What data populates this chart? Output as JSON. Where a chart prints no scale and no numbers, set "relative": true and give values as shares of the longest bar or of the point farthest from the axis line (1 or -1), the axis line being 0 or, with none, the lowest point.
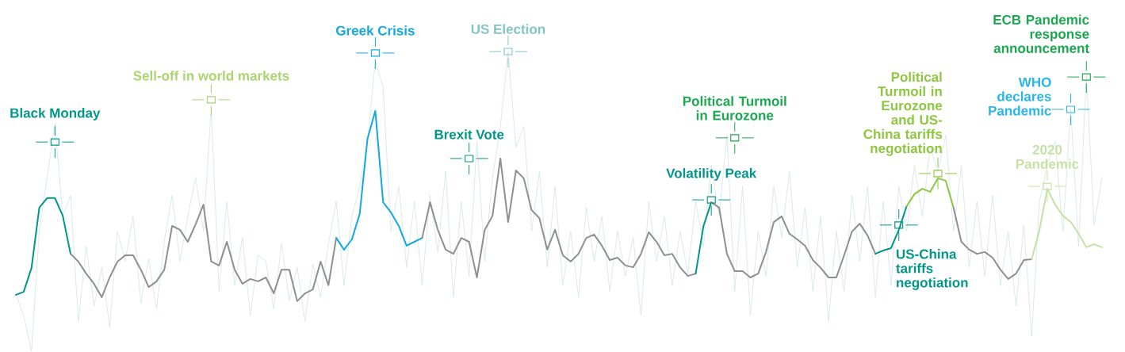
{
  "chart_data": {
    "type": "line",
    "relative": true,
    "categories": [
      null,
      null,
      null,
      null,
      null,
      null,
      null,
      null,
      null,
      null,
      null,
      null,
      null,
      null,
      null,
      null,
      null,
      null,
      null,
      null,
      null,
      null,
      null,
      null,
      null,
      null,
      null,
      null,
      null,
      null,
      null,
      null,
      null,
      null,
      null,
      null,
      null,
      null,
      null,
      null,
      null,
      null,
      null,
      null,
      null,
      null,
      null,
      null,
      null,
      null,
      null,
      null,
      null,
      null,
      null,
      null,
      null,
      null,
      null,
      null,
      null,
      null,
      null,
      null,
      null,
      null,
      null,
      null,
      null,
      null,
      null,
      null,
      null,
      null,
      null,
      null,
      null,
      null,
      null,
      null,
      null,
      null,
      null,
      null,
      null,
      null,
      null,
      null,
      null,
      null,
      null,
      null,
      null,
      null,
      null,
      null,
      null,
      null,
      null,
      null,
      null,
      null,
      null,
      null,
      null,
      null,
      null,
      null,
      null,
      null,
      null,
      null,
      null,
      null,
      null,
      null,
      null,
      null,
      null,
      null,
      null,
      null,
      null,
      null,
      null,
      null,
      null,
      null,
      null,
      null,
      null,
      null,
      null,
      null,
      null,
      null,
      null,
      null,
      null,
      null
    ],
    "series": [
      {
        "color": "#cfe6e2",
        "values": [
          0.19,
          0.12,
          0.0,
          0.4,
          0.58,
          0.76,
          0.45,
          0.52,
          0.1,
          0.35,
          0.15,
          0.28,
          0.08,
          0.4,
          0.3,
          0.45,
          0.16,
          0.31,
          0.14,
          0.37,
          0.52,
          0.3,
          0.45,
          0.58,
          0.4,
          0.81,
          0.2,
          0.5,
          0.22,
          0.38,
          0.12,
          0.32,
          0.3,
          0.14,
          0.36,
          0.17,
          0.28,
          0.1,
          0.29,
          0.18,
          0.36,
          0.5,
          0.22,
          0.45,
          0.55,
          0.7,
          0.97,
          0.88,
          0.4,
          0.55,
          0.28,
          0.5,
          0.22,
          0.52,
          0.33,
          0.6,
          0.18,
          0.5,
          0.25,
          0.7,
          0.3,
          0.58,
          0.75,
          1.0,
          0.68,
          0.75,
          0.4,
          0.6,
          0.28,
          0.55,
          0.22,
          0.4,
          0.18,
          0.48,
          0.3,
          0.45,
          0.2,
          0.4,
          0.25,
          0.38,
          0.12,
          0.5,
          0.3,
          0.45,
          0.22,
          0.4,
          0.26,
          0.5,
          0.35,
          0.62,
          0.45,
          0.72,
          0.2,
          0.55,
          0.12,
          0.4,
          0.25,
          0.55,
          0.38,
          0.6,
          0.28,
          0.48,
          0.2,
          0.45,
          0.1,
          0.4,
          0.2,
          0.52,
          0.3,
          0.55,
          0.18,
          0.5,
          0.22,
          0.55,
          0.4,
          0.62,
          0.45,
          0.68,
          0.6,
          0.72,
          0.4,
          0.62,
          0.28,
          0.5,
          0.25,
          0.52,
          0.22,
          0.4,
          0.15,
          0.42,
          0.05,
          0.5,
          0.62,
          0.7,
          0.4,
          0.81,
          0.35,
          0.92,
          0.42,
          0.58
        ]
      },
      {
        "color": "#00968a",
        "values": [
          0.188,
          0.198,
          0.278,
          0.479,
          0.511,
          0.511,
          0.452,
          0.325,
          null,
          null,
          null,
          null,
          null,
          null,
          null,
          null,
          null,
          null,
          null,
          null,
          null,
          null,
          null,
          null,
          null,
          null,
          null,
          null,
          null,
          null,
          null,
          null,
          null,
          null,
          null,
          null,
          null,
          null,
          null,
          null,
          null,
          null,
          null,
          null,
          null,
          null,
          null,
          null,
          null,
          null,
          null,
          null,
          null,
          null,
          null,
          null,
          null,
          null,
          null,
          null,
          null,
          null,
          null,
          null,
          null,
          null,
          null,
          null,
          null,
          null,
          null,
          null,
          null,
          null,
          null,
          null,
          null,
          null,
          null,
          null,
          null,
          null,
          null,
          null,
          null,
          null,
          null,
          null,
          null,
          null,
          null,
          null,
          null,
          null,
          null,
          null,
          null,
          null,
          null,
          null,
          null,
          null,
          null,
          null,
          null,
          null,
          null,
          null,
          null,
          null,
          null,
          null,
          null,
          null,
          null,
          null,
          null,
          null,
          null,
          null,
          null,
          null,
          null,
          null,
          null,
          null,
          null,
          null,
          null,
          null,
          null,
          null,
          null,
          null,
          null,
          null,
          null,
          null,
          null,
          null
        ]
      },
      {
        "color": "#8f8f8f",
        "values": [
          null,
          null,
          null,
          null,
          null,
          null,
          null,
          0.325,
          0.299,
          0.259,
          0.225,
          0.18,
          0.246,
          0.299,
          0.32,
          0.32,
          0.272,
          0.214,
          0.233,
          0.272,
          0.418,
          0.405,
          0.365,
          0.423,
          0.489,
          0.299,
          0.286,
          0.365,
          0.272,
          0.225,
          0.241,
          0.233,
          0.246,
          0.193,
          0.272,
          0.272,
          0.167,
          0.193,
          0.206,
          0.299,
          0.22,
          0.378,
          null,
          null,
          null,
          null,
          null,
          null,
          null,
          null,
          null,
          null,
          null,
          null,
          null,
          null,
          null,
          null,
          null,
          null,
          null,
          null,
          null,
          null,
          null,
          null,
          null,
          null,
          null,
          null,
          null,
          null,
          null,
          null,
          null,
          null,
          null,
          null,
          null,
          null,
          null,
          null,
          null,
          null,
          null,
          null,
          null,
          null,
          null,
          null,
          null,
          null,
          null,
          null,
          null,
          null,
          null,
          null,
          null,
          null,
          null,
          null,
          null,
          null,
          null,
          null,
          null,
          null,
          null,
          null,
          null,
          null,
          null,
          null,
          null,
          null,
          null,
          null,
          null,
          null,
          null,
          null,
          null,
          null,
          null,
          null,
          null,
          null,
          null,
          null,
          null,
          null,
          null,
          null,
          null,
          null,
          null,
          null,
          null,
          null
        ]
      },
      {
        "color": "#13a8e3",
        "values": [
          null,
          null,
          null,
          null,
          null,
          null,
          null,
          null,
          null,
          null,
          null,
          null,
          null,
          null,
          null,
          null,
          null,
          null,
          null,
          null,
          null,
          null,
          null,
          null,
          null,
          null,
          null,
          null,
          null,
          null,
          null,
          null,
          null,
          null,
          null,
          null,
          null,
          null,
          null,
          null,
          null,
          0.378,
          0.339,
          0.373,
          0.458,
          0.709,
          0.802,
          0.497,
          0.463,
          0.418,
          0.352,
          0.365,
          0.378,
          null,
          null,
          null,
          null,
          null,
          null,
          null,
          null,
          null,
          null,
          null,
          null,
          null,
          null,
          null,
          null,
          null,
          null,
          null,
          null,
          null,
          null,
          null,
          null,
          null,
          null,
          null,
          null,
          null,
          null,
          null,
          null,
          null,
          null,
          null,
          null,
          null,
          null,
          null,
          null,
          null,
          null,
          null,
          null,
          null,
          null,
          null,
          null,
          null,
          null,
          null,
          null,
          null,
          null,
          null,
          null,
          null,
          null,
          null,
          null,
          null,
          null,
          null,
          null,
          null,
          null,
          null,
          null,
          null,
          null,
          null,
          null,
          null,
          null,
          null,
          null,
          null,
          null,
          null,
          null,
          null,
          null,
          null,
          null,
          null,
          null,
          null
        ]
      },
      {
        "color": "#8f8f8f",
        "values": [
          null,
          null,
          null,
          null,
          null,
          null,
          null,
          null,
          null,
          null,
          null,
          null,
          null,
          null,
          null,
          null,
          null,
          null,
          null,
          null,
          null,
          null,
          null,
          null,
          null,
          null,
          null,
          null,
          null,
          null,
          null,
          null,
          null,
          null,
          null,
          null,
          null,
          null,
          null,
          null,
          null,
          null,
          null,
          null,
          null,
          null,
          null,
          null,
          null,
          null,
          null,
          null,
          0.378,
          0.497,
          0.405,
          0.339,
          0.325,
          0.378,
          0.365,
          0.246,
          0.405,
          0.452,
          0.643,
          0.431,
          0.603,
          0.577,
          0.471,
          0.444,
          0.339,
          0.405,
          0.32,
          0.299,
          0.325,
          0.378,
          0.389,
          0.352,
          0.304,
          0.312,
          0.286,
          0.28,
          0.325,
          0.397,
          0.365,
          0.32,
          0.325,
          0.28,
          0.251,
          0.259,
          null,
          null,
          null,
          null,
          null,
          null,
          null,
          null,
          null,
          null,
          null,
          null,
          null,
          null,
          null,
          null,
          null,
          null,
          null,
          null,
          null,
          null,
          null,
          null,
          null,
          null,
          null,
          null,
          null,
          null,
          null,
          null,
          null,
          null,
          null,
          null,
          null,
          null,
          null,
          null,
          null,
          null,
          null,
          null,
          null,
          null,
          null,
          null,
          null,
          null,
          null,
          null
        ]
      },
      {
        "color": "#00968a",
        "values": [
          null,
          null,
          null,
          null,
          null,
          null,
          null,
          null,
          null,
          null,
          null,
          null,
          null,
          null,
          null,
          null,
          null,
          null,
          null,
          null,
          null,
          null,
          null,
          null,
          null,
          null,
          null,
          null,
          null,
          null,
          null,
          null,
          null,
          null,
          null,
          null,
          null,
          null,
          null,
          null,
          null,
          null,
          null,
          null,
          null,
          null,
          null,
          null,
          null,
          null,
          null,
          null,
          null,
          null,
          null,
          null,
          null,
          null,
          null,
          null,
          null,
          null,
          null,
          null,
          null,
          null,
          null,
          null,
          null,
          null,
          null,
          null,
          null,
          null,
          null,
          null,
          null,
          null,
          null,
          null,
          null,
          null,
          null,
          null,
          null,
          null,
          null,
          0.259,
          0.418,
          0.497,
          null,
          null,
          null,
          null,
          null,
          null,
          null,
          null,
          null,
          null,
          null,
          null,
          null,
          null,
          null,
          null,
          null,
          null,
          null,
          null,
          null,
          null,
          null,
          null,
          null,
          null,
          null,
          null,
          null,
          null,
          null,
          null,
          null,
          null,
          null,
          null,
          null,
          null,
          null,
          null,
          null,
          null,
          null,
          null,
          null,
          null,
          null,
          null,
          null,
          null
        ]
      },
      {
        "color": "#8f8f8f",
        "values": [
          null,
          null,
          null,
          null,
          null,
          null,
          null,
          null,
          null,
          null,
          null,
          null,
          null,
          null,
          null,
          null,
          null,
          null,
          null,
          null,
          null,
          null,
          null,
          null,
          null,
          null,
          null,
          null,
          null,
          null,
          null,
          null,
          null,
          null,
          null,
          null,
          null,
          null,
          null,
          null,
          null,
          null,
          null,
          null,
          null,
          null,
          null,
          null,
          null,
          null,
          null,
          null,
          null,
          null,
          null,
          null,
          null,
          null,
          null,
          null,
          null,
          null,
          null,
          null,
          null,
          null,
          null,
          null,
          null,
          null,
          null,
          null,
          null,
          null,
          null,
          null,
          null,
          null,
          null,
          null,
          null,
          null,
          null,
          null,
          null,
          null,
          null,
          null,
          null,
          0.497,
          0.479,
          0.325,
          0.267,
          0.267,
          0.246,
          0.259,
          0.331,
          0.431,
          0.45,
          0.392,
          0.373,
          0.352,
          0.304,
          0.278,
          0.246,
          0.246,
          0.32,
          0.399,
          0.426,
          0.386,
          0.325,
          null,
          null,
          null,
          null,
          null,
          null,
          null,
          null,
          null,
          null,
          null,
          null,
          null,
          null,
          null,
          null,
          null,
          null,
          null,
          null,
          null,
          null,
          null,
          null,
          null,
          null,
          null,
          null,
          null
        ]
      },
      {
        "color": "#00968a",
        "values": [
          null,
          null,
          null,
          null,
          null,
          null,
          null,
          null,
          null,
          null,
          null,
          null,
          null,
          null,
          null,
          null,
          null,
          null,
          null,
          null,
          null,
          null,
          null,
          null,
          null,
          null,
          null,
          null,
          null,
          null,
          null,
          null,
          null,
          null,
          null,
          null,
          null,
          null,
          null,
          null,
          null,
          null,
          null,
          null,
          null,
          null,
          null,
          null,
          null,
          null,
          null,
          null,
          null,
          null,
          null,
          null,
          null,
          null,
          null,
          null,
          null,
          null,
          null,
          null,
          null,
          null,
          null,
          null,
          null,
          null,
          null,
          null,
          null,
          null,
          null,
          null,
          null,
          null,
          null,
          null,
          null,
          null,
          null,
          null,
          null,
          null,
          null,
          null,
          null,
          null,
          null,
          null,
          null,
          null,
          null,
          null,
          null,
          null,
          null,
          null,
          null,
          null,
          null,
          null,
          null,
          null,
          null,
          null,
          null,
          null,
          0.325,
          0.336,
          0.344,
          0.405,
          0.484,
          null,
          null,
          null,
          null,
          null,
          null,
          null,
          null,
          null,
          null,
          null,
          null,
          null,
          null,
          null,
          null,
          null,
          null,
          null,
          null,
          null,
          null,
          null,
          null,
          null
        ]
      },
      {
        "color": "#8dc63f",
        "values": [
          null,
          null,
          null,
          null,
          null,
          null,
          null,
          null,
          null,
          null,
          null,
          null,
          null,
          null,
          null,
          null,
          null,
          null,
          null,
          null,
          null,
          null,
          null,
          null,
          null,
          null,
          null,
          null,
          null,
          null,
          null,
          null,
          null,
          null,
          null,
          null,
          null,
          null,
          null,
          null,
          null,
          null,
          null,
          null,
          null,
          null,
          null,
          null,
          null,
          null,
          null,
          null,
          null,
          null,
          null,
          null,
          null,
          null,
          null,
          null,
          null,
          null,
          null,
          null,
          null,
          null,
          null,
          null,
          null,
          null,
          null,
          null,
          null,
          null,
          null,
          null,
          null,
          null,
          null,
          null,
          null,
          null,
          null,
          null,
          null,
          null,
          null,
          null,
          null,
          null,
          null,
          null,
          null,
          null,
          null,
          null,
          null,
          null,
          null,
          null,
          null,
          null,
          null,
          null,
          null,
          null,
          null,
          null,
          null,
          null,
          null,
          null,
          null,
          null,
          0.484,
          0.524,
          0.542,
          0.532,
          0.577,
          0.569,
          0.479,
          null,
          null,
          null,
          null,
          null,
          null,
          null,
          null,
          null,
          null,
          null,
          null,
          null,
          null,
          null,
          null,
          null,
          null,
          null
        ]
      },
      {
        "color": "#8f8f8f",
        "values": [
          null,
          null,
          null,
          null,
          null,
          null,
          null,
          null,
          null,
          null,
          null,
          null,
          null,
          null,
          null,
          null,
          null,
          null,
          null,
          null,
          null,
          null,
          null,
          null,
          null,
          null,
          null,
          null,
          null,
          null,
          null,
          null,
          null,
          null,
          null,
          null,
          null,
          null,
          null,
          null,
          null,
          null,
          null,
          null,
          null,
          null,
          null,
          null,
          null,
          null,
          null,
          null,
          null,
          null,
          null,
          null,
          null,
          null,
          null,
          null,
          null,
          null,
          null,
          null,
          null,
          null,
          null,
          null,
          null,
          null,
          null,
          null,
          null,
          null,
          null,
          null,
          null,
          null,
          null,
          null,
          null,
          null,
          null,
          null,
          null,
          null,
          null,
          null,
          null,
          null,
          null,
          null,
          null,
          null,
          null,
          null,
          null,
          null,
          null,
          null,
          null,
          null,
          null,
          null,
          null,
          null,
          null,
          null,
          null,
          null,
          null,
          null,
          null,
          null,
          null,
          null,
          null,
          null,
          null,
          null,
          0.479,
          0.365,
          0.339,
          0.325,
          0.331,
          0.312,
          0.272,
          0.241,
          0.259,
          0.304,
          0.307,
          null,
          null,
          null,
          null,
          null,
          null,
          null,
          null,
          null
        ]
      },
      {
        "color": "#c6e1a6",
        "values": [
          null,
          null,
          null,
          null,
          null,
          null,
          null,
          null,
          null,
          null,
          null,
          null,
          null,
          null,
          null,
          null,
          null,
          null,
          null,
          null,
          null,
          null,
          null,
          null,
          null,
          null,
          null,
          null,
          null,
          null,
          null,
          null,
          null,
          null,
          null,
          null,
          null,
          null,
          null,
          null,
          null,
          null,
          null,
          null,
          null,
          null,
          null,
          null,
          null,
          null,
          null,
          null,
          null,
          null,
          null,
          null,
          null,
          null,
          null,
          null,
          null,
          null,
          null,
          null,
          null,
          null,
          null,
          null,
          null,
          null,
          null,
          null,
          null,
          null,
          null,
          null,
          null,
          null,
          null,
          null,
          null,
          null,
          null,
          null,
          null,
          null,
          null,
          null,
          null,
          null,
          null,
          null,
          null,
          null,
          null,
          null,
          null,
          null,
          null,
          null,
          null,
          null,
          null,
          null,
          null,
          null,
          null,
          null,
          null,
          null,
          null,
          null,
          null,
          null,
          null,
          null,
          null,
          null,
          null,
          null,
          null,
          null,
          null,
          null,
          null,
          null,
          null,
          null,
          null,
          null,
          0.307,
          0.405,
          0.542,
          0.489,
          0.452,
          0.431,
          0.392,
          0.347,
          0.357,
          0.347
        ]
      }
    ],
    "annotations": [
      {
        "text": "Black Monday",
        "y": 0.698
      },
      {
        "text": "Sell-off in world markets",
        "y": 0.839
      },
      {
        "text": "Greek Crisis",
        "y": 0.995
      },
      {
        "text": "Brexit Vote",
        "y": 0.643
      },
      {
        "text": "US Election",
        "y": 1.0
      },
      {
        "text": "Volatility Peak",
        "y": 0.505
      },
      {
        "text": "Political Turmoil in Eurozone",
        "y": 0.712
      },
      "US-China tariffs negotiation",
      "Political Turmoil in Eurozone and US-China tariffs negotiation",
      {
        "text": "2020 Pandemic",
        "y": 0.55
      },
      "WHO declares Pandemic",
      "ECB Pandemic response announcement"
    ]
  }
}
